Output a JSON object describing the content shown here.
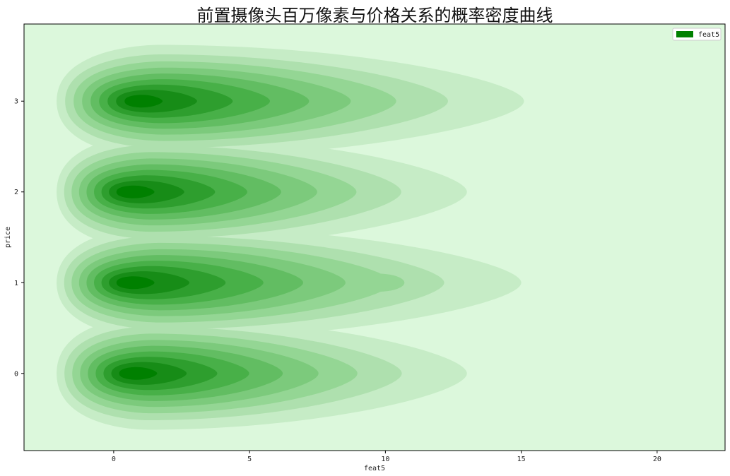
{
  "chart_data": {
    "type": "kde_contour",
    "title": "前置摄像头百万像素与价格关系的概率密度曲线",
    "xlabel": "feat5",
    "ylabel": "price",
    "xlim": [
      -3.3,
      22.5
    ],
    "ylim": [
      -0.85,
      3.85
    ],
    "x_ticks": [
      0,
      5,
      10,
      15,
      20
    ],
    "y_ticks": [
      0,
      1,
      2,
      3
    ],
    "legend": {
      "entries": [
        "feat5"
      ],
      "position": "top-right"
    },
    "grid": false,
    "colors": {
      "background": "#dcf8dc",
      "levels": [
        "#c6ecc6",
        "#aee0ae",
        "#94d694",
        "#7cca7c",
        "#62bd62",
        "#48b048",
        "#2e9e2e",
        "#178c17",
        "#008000"
      ],
      "legend_patch": "#008000"
    },
    "series": [
      {
        "name": "feat5",
        "y": [
          3,
          2,
          1,
          0
        ],
        "density_peak_x": [
          0.9,
          0.6,
          0.6,
          0.7
        ],
        "right_extent_x": [
          15.1,
          13.0,
          15.0,
          13.0
        ]
      }
    ],
    "secondary_bumps": [
      {
        "x": 9.7,
        "y": 1.0
      }
    ]
  }
}
